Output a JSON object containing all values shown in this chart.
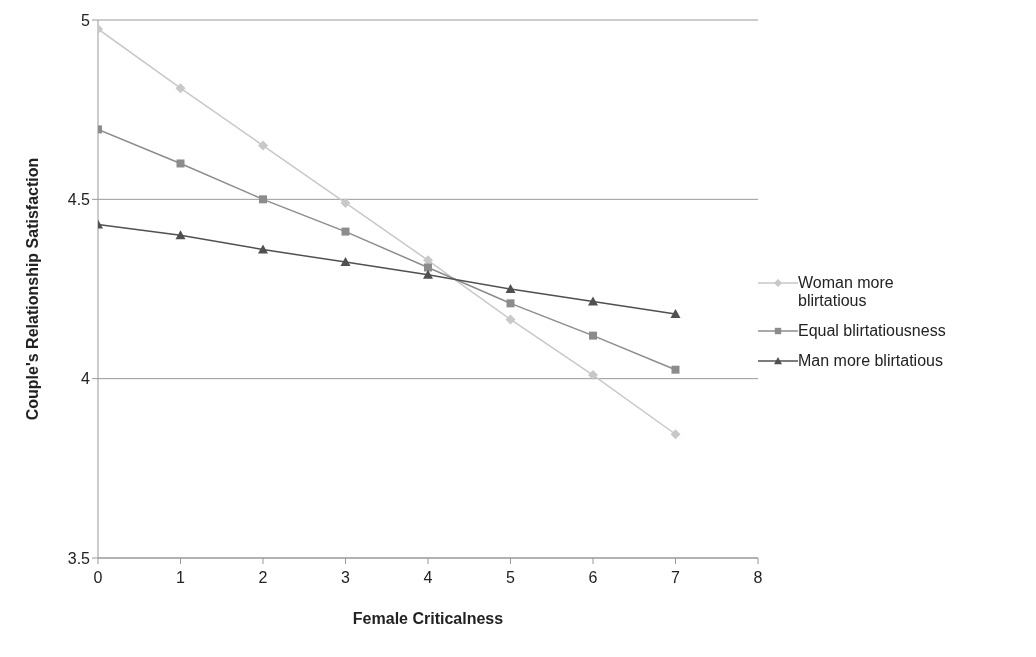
{
  "chart_data": {
    "type": "line",
    "xlabel": "Female Criticalness",
    "ylabel": "Couple's Relationship Satisfaction",
    "x": [
      0,
      1,
      2,
      3,
      4,
      5,
      6,
      7
    ],
    "series": [
      {
        "name": "Woman more blirtatious",
        "color": "#c8c8c8",
        "marker": "diamond",
        "values": [
          4.975,
          4.81,
          4.65,
          4.49,
          4.33,
          4.165,
          4.01,
          3.845
        ]
      },
      {
        "name": "Equal blirtatiousness",
        "color": "#8c8c8c",
        "marker": "square",
        "values": [
          4.695,
          4.6,
          4.5,
          4.41,
          4.31,
          4.21,
          4.12,
          4.025
        ]
      },
      {
        "name": "Man more blirtatious",
        "color": "#505050",
        "marker": "triangle",
        "values": [
          4.43,
          4.4,
          4.36,
          4.325,
          4.29,
          4.25,
          4.215,
          4.18
        ]
      }
    ],
    "xlim": [
      0,
      8
    ],
    "xticks": [
      0,
      1,
      2,
      3,
      4,
      5,
      6,
      7,
      8
    ],
    "ylim": [
      3.5,
      5
    ],
    "yticks": [
      3.5,
      4,
      4.5,
      5
    ],
    "grid": "y",
    "legend": "right",
    "line_style": "solid"
  }
}
